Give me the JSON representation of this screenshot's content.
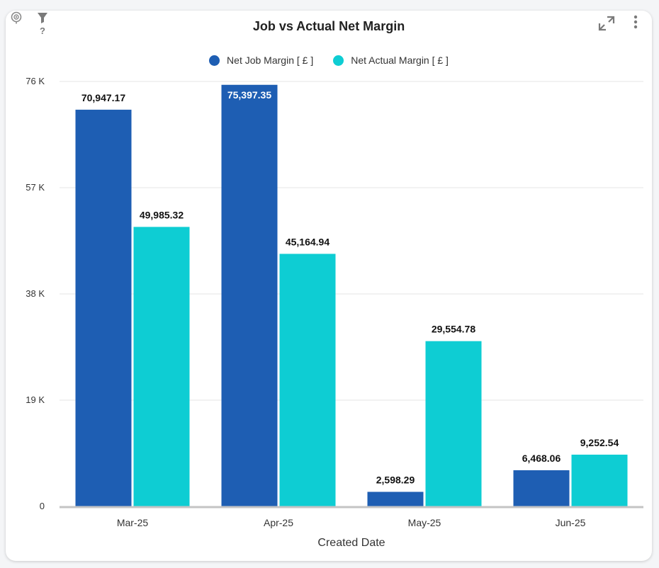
{
  "colors": {
    "series1": "#1e5eb3",
    "series2": "#0ecdd3",
    "grid": "#e6e6e6",
    "axis": "#c4c4c4"
  },
  "icons": [
    "location-pin-icon",
    "filter-help-icon",
    "expand-icon",
    "more-vertical-icon"
  ],
  "chart_data": {
    "type": "bar",
    "title": "Job vs Actual Net Margin",
    "xlabel": "Created Date",
    "ylabel": "",
    "categories": [
      "Mar-25",
      "Apr-25",
      "May-25",
      "Jun-25"
    ],
    "series": [
      {
        "name": "Net Job Margin [ £ ]",
        "values": [
          70947.17,
          75397.35,
          2598.29,
          6468.06
        ],
        "labels": [
          "70,947.17",
          "75,397.35",
          "2,598.29",
          "6,468.06"
        ]
      },
      {
        "name": "Net Actual Margin [ £ ]",
        "values": [
          49985.32,
          45164.94,
          29554.78,
          9252.54
        ],
        "labels": [
          "49,985.32",
          "45,164.94",
          "29,554.78",
          "9,252.54"
        ]
      }
    ],
    "ylim": [
      0,
      76000
    ],
    "yticks": [
      0,
      19000,
      38000,
      57000,
      76000
    ],
    "ytick_labels": [
      "0",
      "19 K",
      "38 K",
      "57 K",
      "76 K"
    ],
    "grid": true,
    "legend": "top"
  }
}
